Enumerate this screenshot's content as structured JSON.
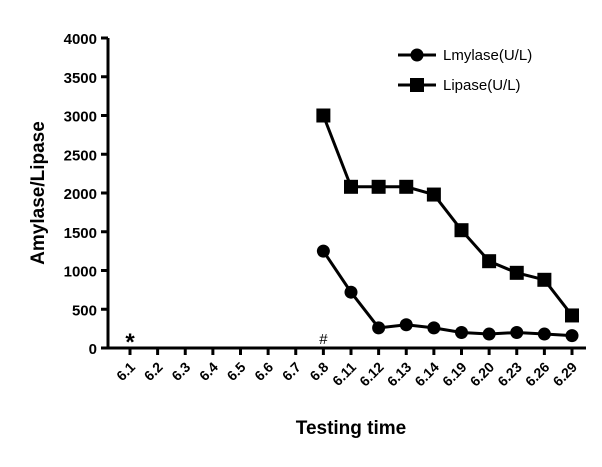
{
  "chart_data": {
    "type": "line",
    "title": "",
    "xlabel": "Testing time",
    "ylabel": "Amylase/Lipase",
    "ylim": [
      0,
      4000
    ],
    "yticks": [
      "0",
      "500",
      "1000",
      "1500",
      "2000",
      "2500",
      "3000",
      "3500",
      "4000"
    ],
    "categories": [
      "6.1",
      "6.2",
      "6.3",
      "6.4",
      "6.5",
      "6.6",
      "6.7",
      "6.8",
      "6.11",
      "6.12",
      "6.13",
      "6.14",
      "6.19",
      "6.20",
      "6.23",
      "6.26",
      "6.29"
    ],
    "series": [
      {
        "name": "Lmylase(U/L)",
        "marker": "circle",
        "values": [
          null,
          null,
          null,
          null,
          null,
          null,
          null,
          1250,
          720,
          260,
          300,
          260,
          200,
          180,
          200,
          180,
          160
        ]
      },
      {
        "name": "Lipase(U/L)",
        "marker": "square",
        "values": [
          null,
          null,
          null,
          null,
          null,
          null,
          null,
          3000,
          2080,
          2080,
          2080,
          1980,
          1520,
          1120,
          970,
          880,
          420
        ]
      }
    ],
    "annotations": [
      {
        "category": "6.1",
        "text": "*"
      },
      {
        "category": "6.8",
        "text": "#"
      }
    ],
    "legend": "top-right",
    "grid": false
  }
}
